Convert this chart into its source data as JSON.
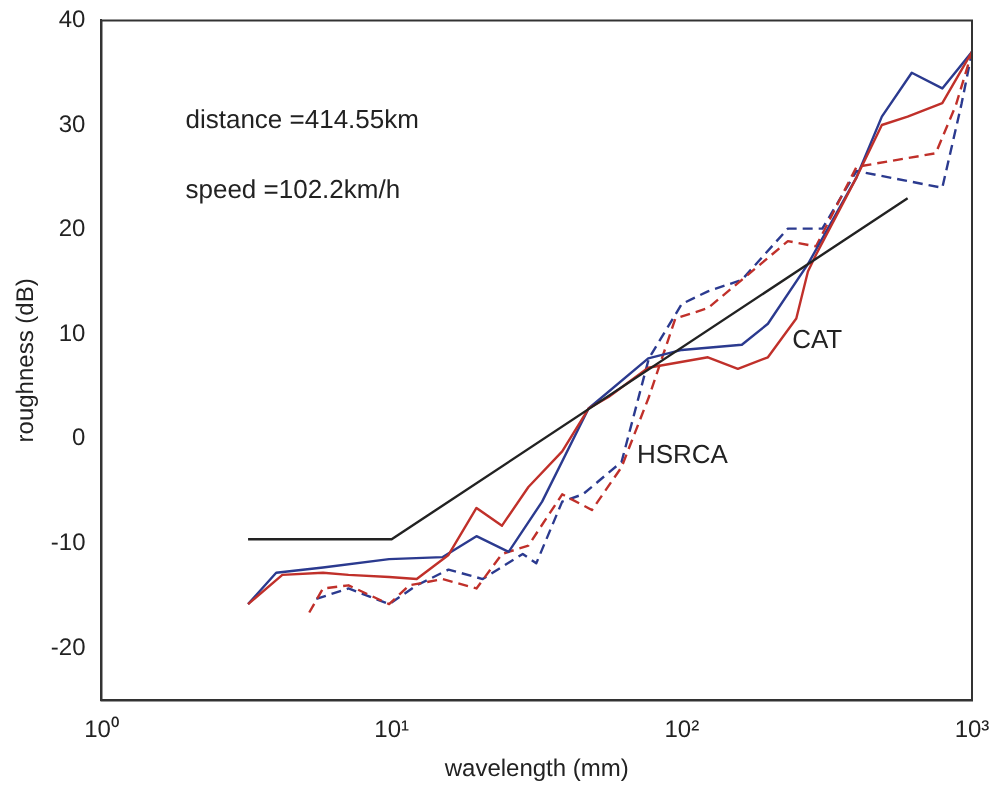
{
  "chart_data": {
    "type": "line",
    "xlabel": "wavelength (mm)",
    "ylabel": "roughness (dB)",
    "log": "x",
    "marker": "none",
    "xlim": [
      1,
      1000
    ],
    "xticks": [
      {
        "value": 1,
        "label": "10⁰"
      },
      {
        "value": 10,
        "label": "10¹"
      },
      {
        "value": 100,
        "label": "10²"
      },
      {
        "value": 1000,
        "label": "10³"
      }
    ],
    "ylim": [
      -25,
      40
    ],
    "yticks": [
      -20,
      -10,
      0,
      10,
      20,
      30,
      40
    ],
    "annotations": [
      "distance =414.55km",
      "speed =102.2km/h",
      {
        "text": "CAT",
        "x": 240,
        "y": 9.4
      },
      {
        "text": "HSRCA",
        "x": 70,
        "y": -1.6
      }
    ],
    "series": [
      {
        "color": "#222222",
        "line_style": "solid",
        "x": [
          3.2,
          10,
          600
        ],
        "values": [
          -9.6,
          -9.6,
          23
        ]
      },
      {
        "color": "#c0302a",
        "line_style": "solid",
        "x": [
          3.2,
          4.2,
          5.8,
          7.1,
          9.8,
          12.2,
          15.7,
          19.6,
          24,
          29.6,
          38.7,
          47.7,
          55.9,
          76.6,
          123,
          156,
          198,
          248,
          272,
          290,
          400,
          489,
          600,
          790,
          1000
        ],
        "values": [
          -15.8,
          -13,
          -12.8,
          -13,
          -13.2,
          -13.4,
          -11.1,
          -6.6,
          -8.3,
          -4.6,
          -1.2,
          2.9,
          4,
          6.8,
          7.8,
          6.7,
          7.8,
          11.5,
          16,
          17.6,
          25,
          30,
          30.8,
          32.1,
          37
        ]
      },
      {
        "color": "#2b3a8f",
        "line_style": "solid",
        "x": [
          3.2,
          4,
          5.8,
          9.8,
          15,
          19.6,
          25.3,
          33,
          47.7,
          76.6,
          100,
          161,
          198,
          272,
          400,
          489,
          620,
          790,
          1000
        ],
        "values": [
          -15.8,
          -12.8,
          -12.3,
          -11.5,
          -11.3,
          -9.3,
          -10.8,
          -6,
          2.9,
          7.7,
          8.5,
          9,
          11,
          16.7,
          25,
          30.8,
          35,
          33.5,
          37
        ]
      },
      {
        "color": "#c0302a",
        "line_style": "dashed",
        "x": [
          5.2,
          5.8,
          7.1,
          9.8,
          11.5,
          15,
          19.6,
          24,
          29.6,
          38.7,
          49,
          62,
          77,
          95,
          123,
          161,
          232,
          290,
          400,
          750,
          880,
          1000
        ],
        "values": [
          -16.6,
          -14.3,
          -14,
          -15.8,
          -14,
          -13.4,
          -14.3,
          -11,
          -10.2,
          -5.3,
          -6.8,
          -2.7,
          4,
          11.5,
          12.5,
          15.2,
          18.9,
          18.4,
          26,
          27.3,
          31.9,
          37
        ]
      },
      {
        "color": "#2b3a8f",
        "line_style": "dashed",
        "x": [
          5.5,
          7.1,
          9.8,
          12.2,
          15.7,
          20.6,
          28.3,
          31.5,
          38.7,
          45.6,
          62,
          77,
          100,
          123,
          161,
          232,
          305,
          400,
          790,
          920,
          1000
        ],
        "values": [
          -15.3,
          -14.3,
          -15.8,
          -14,
          -12.5,
          -13.4,
          -11,
          -11.9,
          -6,
          -5.3,
          -2.2,
          7.7,
          12.9,
          14.1,
          15.2,
          20.1,
          20.1,
          25.6,
          24,
          32,
          37
        ]
      }
    ]
  }
}
